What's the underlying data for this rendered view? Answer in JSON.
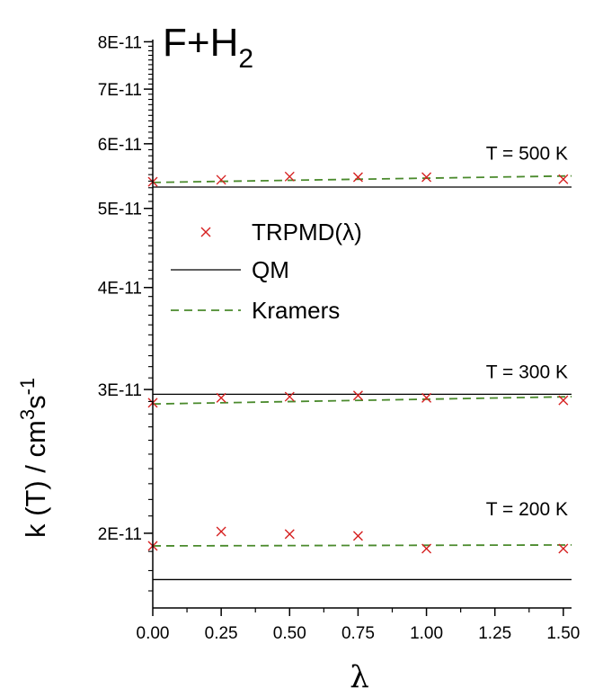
{
  "chart_data": {
    "type": "line",
    "title_main": "F+H",
    "title_sub": "2",
    "xlabel": "λ",
    "ylabel_parts": [
      "k (T) / cm",
      "3",
      "s",
      "-1"
    ],
    "xlim": [
      0,
      1.53
    ],
    "ylim": [
      1.62e-11,
      8.05e-11
    ],
    "yscale": "log",
    "x_ticks": [
      0.0,
      0.25,
      0.5,
      0.75,
      1.0,
      1.25,
      1.5
    ],
    "x_tick_labels": [
      "0.00",
      "0.25",
      "0.50",
      "0.75",
      "1.00",
      "1.25",
      "1.50"
    ],
    "y_ticks": [
      2e-11,
      3e-11,
      4e-11,
      5e-11,
      6e-11,
      7e-11,
      8e-11
    ],
    "y_tick_labels": [
      "2E-11",
      "3E-11",
      "4E-11",
      "5E-11",
      "6E-11",
      "7E-11",
      "8E-11"
    ],
    "legend": {
      "position": "center-left",
      "entries": [
        {
          "label": "TRPMD(λ)",
          "style": "cross",
          "color": "#d62020"
        },
        {
          "label": "QM",
          "style": "solid",
          "color": "#000000"
        },
        {
          "label": "Kramers",
          "style": "dashed",
          "color": "#4a8a2c"
        }
      ]
    },
    "groups": [
      {
        "label": "T = 500 K",
        "trpmd_x": [
          0.0,
          0.25,
          0.5,
          0.75,
          1.0,
          1.5
        ],
        "trpmd_y": [
          5.39e-11,
          5.42e-11,
          5.47e-11,
          5.46e-11,
          5.46e-11,
          5.43e-11
        ],
        "qm": 5.31e-11,
        "kramers_x": [
          0.0,
          1.53
        ],
        "kramers_y": [
          5.38e-11,
          5.48e-11
        ]
      },
      {
        "label": "T = 300 K",
        "trpmd_x": [
          0.0,
          0.25,
          0.5,
          0.75,
          1.0,
          1.5
        ],
        "trpmd_y": [
          2.89e-11,
          2.93e-11,
          2.94e-11,
          2.95e-11,
          2.93e-11,
          2.91e-11
        ],
        "qm": 2.96e-11,
        "kramers_x": [
          0.0,
          1.53
        ],
        "kramers_y": [
          2.88e-11,
          2.94e-11
        ]
      },
      {
        "label": "T = 200 K",
        "trpmd_x": [
          0.0,
          0.25,
          0.5,
          0.75,
          1.0,
          1.5
        ],
        "trpmd_y": [
          1.93e-11,
          2.01e-11,
          1.995e-11,
          1.985e-11,
          1.915e-11,
          1.915e-11
        ],
        "qm": 1.755e-11,
        "kramers_x": [
          0.0,
          1.53
        ],
        "kramers_y": [
          1.93e-11,
          1.935e-11
        ]
      }
    ],
    "colors": {
      "trpmd": "#d62020",
      "qm": "#000000",
      "kramers": "#4a8a2c"
    }
  }
}
